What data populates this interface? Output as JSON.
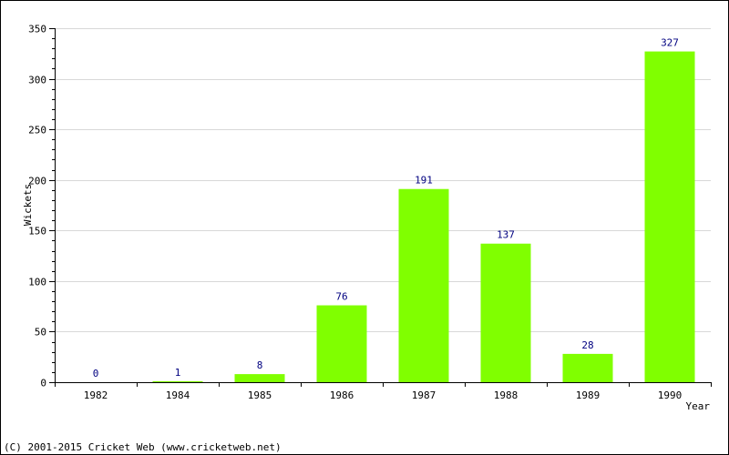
{
  "chart_data": {
    "type": "bar",
    "categories": [
      "1982",
      "1984",
      "1985",
      "1986",
      "1987",
      "1988",
      "1989",
      "1990"
    ],
    "values": [
      0,
      1,
      8,
      76,
      191,
      137,
      28,
      327
    ],
    "xlabel": "Year",
    "ylabel": "Wickets",
    "ylim": [
      0,
      350
    ],
    "yticks": [
      0,
      50,
      100,
      150,
      200,
      250,
      300,
      350
    ],
    "grid": true,
    "bar_color": "#80ff00",
    "label_color": "#000080"
  },
  "footer": {
    "copyright": "(C) 2001-2015 Cricket Web (www.cricketweb.net)"
  }
}
